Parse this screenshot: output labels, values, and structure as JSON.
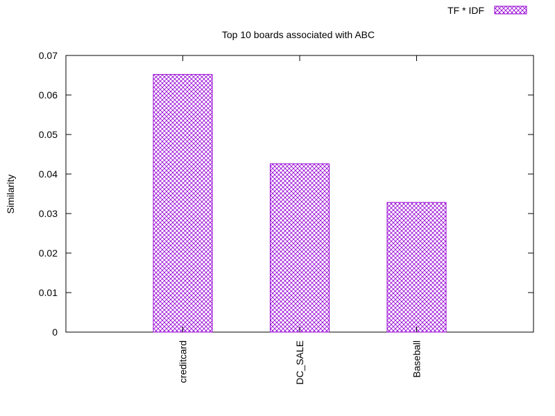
{
  "chart_data": {
    "type": "bar",
    "title": "Top 10 boards associated with ABC",
    "xlabel": "",
    "ylabel": "Similarity",
    "ylim": [
      0,
      0.07
    ],
    "yticks": [
      "0",
      "0.01",
      "0.02",
      "0.03",
      "0.04",
      "0.05",
      "0.06",
      "0.07"
    ],
    "categories": [
      "creditcard",
      "DC_SALE",
      "Baseball"
    ],
    "series": [
      {
        "name": "TF * IDF",
        "values": [
          0.0652,
          0.0426,
          0.0328
        ],
        "color": "#9400d3",
        "pattern": "crosshatch"
      }
    ],
    "legend_position": "top-right",
    "grid": false
  }
}
